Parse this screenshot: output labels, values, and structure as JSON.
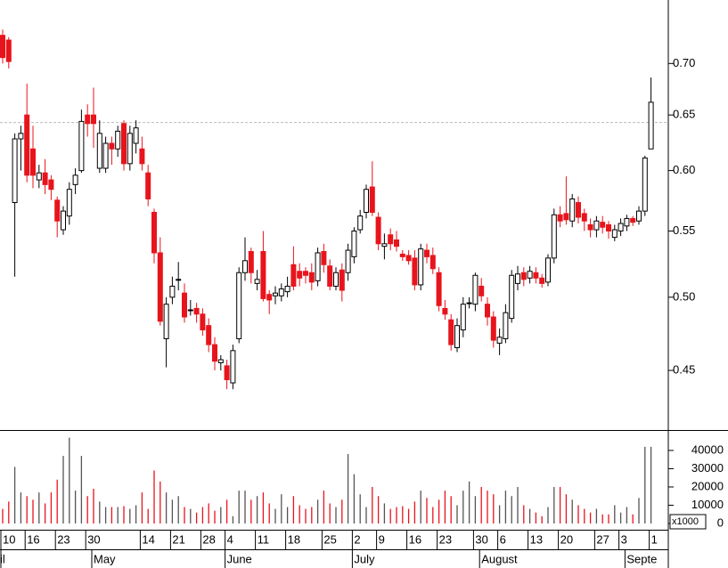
{
  "chart_data": {
    "type": "candlestick",
    "categories": [
      "10",
      null,
      null,
      null,
      "16",
      null,
      null,
      null,
      null,
      "23",
      null,
      null,
      null,
      null,
      "30",
      null,
      null,
      null,
      null,
      null,
      null,
      null,
      null,
      "14",
      null,
      null,
      null,
      null,
      "21",
      null,
      null,
      null,
      null,
      "28",
      null,
      null,
      null,
      "4",
      null,
      null,
      null,
      null,
      "11",
      null,
      null,
      null,
      null,
      "18",
      null,
      null,
      null,
      null,
      null,
      "25",
      null,
      null,
      null,
      null,
      "2",
      null,
      null,
      null,
      "9",
      null,
      null,
      null,
      null,
      "16",
      null,
      null,
      null,
      null,
      "23",
      null,
      null,
      null,
      null,
      null,
      "30",
      null,
      null,
      null,
      "6",
      null,
      null,
      null,
      null,
      "13",
      null,
      null,
      null,
      null,
      "20",
      null,
      null,
      null,
      null,
      null,
      "27",
      null,
      null,
      null,
      "3",
      null,
      null,
      null,
      null,
      "1"
    ],
    "months": [
      "il",
      null,
      null,
      null,
      null,
      null,
      null,
      null,
      null,
      null,
      null,
      null,
      null,
      null,
      null,
      "May",
      null,
      null,
      null,
      null,
      null,
      null,
      null,
      null,
      null,
      null,
      null,
      null,
      null,
      null,
      null,
      null,
      null,
      null,
      null,
      null,
      null,
      "June",
      null,
      null,
      null,
      null,
      null,
      null,
      null,
      null,
      null,
      null,
      null,
      null,
      null,
      null,
      null,
      null,
      null,
      null,
      null,
      null,
      "July",
      null,
      null,
      null,
      null,
      null,
      null,
      null,
      null,
      null,
      null,
      null,
      null,
      null,
      null,
      null,
      null,
      null,
      null,
      null,
      null,
      "August",
      null,
      null,
      null,
      null,
      null,
      null,
      null,
      null,
      null,
      null,
      null,
      null,
      null,
      null,
      null,
      null,
      null,
      null,
      null,
      null,
      null,
      null,
      null,
      "Septe",
      null,
      null,
      null,
      null
    ],
    "open": [
      0.729,
      0.724,
      0.573,
      0.628,
      0.65,
      0.619,
      0.592,
      0.598,
      0.592,
      0.575,
      0.551,
      0.562,
      0.588,
      0.6,
      0.65,
      0.65,
      0.602,
      0.602,
      0.624,
      0.619,
      0.642,
      0.606,
      0.624,
      0.619,
      0.598,
      0.565,
      0.533,
      0.471,
      0.5,
      0.513,
      0.503,
      0.491,
      0.492,
      0.488,
      0.48,
      0.467,
      0.455,
      0.453,
      0.442,
      0.471,
      0.518,
      0.534,
      0.51,
      0.534,
      0.502,
      0.501,
      0.501,
      0.504,
      0.524,
      0.519,
      0.519,
      0.518,
      0.512,
      0.534,
      0.523,
      0.508,
      0.52,
      0.518,
      0.53,
      0.551,
      0.565,
      0.586,
      0.561,
      0.538,
      0.547,
      0.543,
      0.532,
      0.531,
      0.529,
      0.509,
      0.535,
      0.531,
      0.518,
      0.492,
      0.484,
      0.465,
      0.477,
      0.496,
      0.495,
      0.508,
      0.495,
      0.486,
      0.468,
      0.471,
      0.485,
      0.51,
      0.518,
      0.514,
      0.518,
      0.514,
      0.511,
      0.529,
      0.563,
      0.564,
      0.558,
      0.573,
      0.564,
      0.555,
      0.551,
      0.557,
      0.555,
      0.545,
      0.55,
      0.554,
      0.56,
      0.558,
      0.566,
      0.619
    ],
    "high": [
      0.735,
      0.727,
      0.633,
      0.64,
      0.68,
      0.64,
      0.605,
      0.61,
      0.596,
      0.578,
      0.57,
      0.59,
      0.602,
      0.655,
      0.66,
      0.676,
      0.645,
      0.63,
      0.63,
      0.64,
      0.645,
      0.64,
      0.645,
      0.63,
      0.605,
      0.568,
      0.545,
      0.5,
      0.515,
      0.526,
      0.51,
      0.498,
      0.496,
      0.492,
      0.485,
      0.472,
      0.46,
      0.457,
      0.467,
      0.522,
      0.545,
      0.537,
      0.52,
      0.55,
      0.505,
      0.508,
      0.51,
      0.515,
      0.538,
      0.525,
      0.522,
      0.525,
      0.537,
      0.54,
      0.528,
      0.522,
      0.525,
      0.54,
      0.553,
      0.567,
      0.588,
      0.608,
      0.565,
      0.548,
      0.552,
      0.55,
      0.535,
      0.535,
      0.535,
      0.54,
      0.54,
      0.537,
      0.522,
      0.498,
      0.488,
      0.485,
      0.5,
      0.5,
      0.518,
      0.514,
      0.5,
      0.49,
      0.478,
      0.495,
      0.52,
      0.523,
      0.522,
      0.523,
      0.522,
      0.517,
      0.532,
      0.568,
      0.57,
      0.595,
      0.58,
      0.578,
      0.568,
      0.56,
      0.562,
      0.562,
      0.558,
      0.555,
      0.56,
      0.563,
      0.562,
      0.57,
      0.613,
      0.686
    ],
    "low": [
      0.7,
      0.695,
      0.515,
      0.6,
      0.59,
      0.585,
      0.585,
      0.58,
      0.575,
      0.545,
      0.547,
      0.555,
      0.58,
      0.598,
      0.63,
      0.62,
      0.598,
      0.598,
      0.605,
      0.612,
      0.6,
      0.6,
      0.615,
      0.6,
      0.57,
      0.525,
      0.48,
      0.452,
      0.495,
      0.505,
      0.482,
      0.487,
      0.482,
      0.473,
      0.462,
      0.45,
      0.45,
      0.438,
      0.438,
      0.468,
      0.512,
      0.51,
      0.505,
      0.497,
      0.488,
      0.495,
      0.497,
      0.5,
      0.505,
      0.508,
      0.51,
      0.505,
      0.508,
      0.518,
      0.505,
      0.505,
      0.497,
      0.512,
      0.525,
      0.548,
      0.56,
      0.562,
      0.535,
      0.528,
      0.535,
      0.534,
      0.527,
      0.524,
      0.505,
      0.505,
      0.525,
      0.517,
      0.49,
      0.484,
      0.463,
      0.462,
      0.472,
      0.492,
      0.49,
      0.497,
      0.48,
      0.465,
      0.46,
      0.468,
      0.482,
      0.505,
      0.508,
      0.51,
      0.51,
      0.507,
      0.508,
      0.525,
      0.553,
      0.555,
      0.553,
      0.556,
      0.55,
      0.545,
      0.545,
      0.548,
      0.544,
      0.542,
      0.546,
      0.55,
      0.554,
      0.555,
      0.562,
      0.619
    ],
    "close": [
      0.706,
      0.702,
      0.628,
      0.633,
      0.596,
      0.596,
      0.598,
      0.588,
      0.584,
      0.558,
      0.566,
      0.584,
      0.596,
      0.644,
      0.642,
      0.642,
      0.633,
      0.624,
      0.619,
      0.635,
      0.606,
      0.633,
      0.638,
      0.606,
      0.576,
      0.533,
      0.483,
      0.495,
      0.508,
      0.513,
      0.486,
      0.491,
      0.488,
      0.477,
      0.467,
      0.456,
      0.457,
      0.444,
      0.463,
      0.518,
      0.527,
      0.518,
      0.513,
      0.499,
      0.498,
      0.503,
      0.506,
      0.508,
      0.508,
      0.514,
      0.516,
      0.511,
      0.533,
      0.524,
      0.508,
      0.518,
      0.505,
      0.535,
      0.55,
      0.562,
      0.584,
      0.565,
      0.54,
      0.54,
      0.54,
      0.538,
      0.53,
      0.527,
      0.509,
      0.536,
      0.53,
      0.521,
      0.494,
      0.488,
      0.467,
      0.48,
      0.495,
      0.496,
      0.516,
      0.501,
      0.486,
      0.47,
      0.472,
      0.489,
      0.516,
      0.517,
      0.513,
      0.519,
      0.514,
      0.51,
      0.529,
      0.563,
      0.558,
      0.559,
      0.576,
      0.561,
      0.558,
      0.551,
      0.558,
      0.553,
      0.55,
      0.551,
      0.556,
      0.56,
      0.557,
      0.566,
      0.611,
      0.662
    ],
    "up_color": "#ffffff",
    "down_color": "#e8141c",
    "ylim": [
      0.413,
      0.767
    ],
    "yticks": [
      0.45,
      {
        "value": 0.5,
        "label": "0.50"
      },
      0.55,
      {
        "value": 0.6,
        "label": "0.60"
      },
      0.65,
      {
        "value": 0.7,
        "label": "0.70"
      }
    ],
    "log_scale": true,
    "reference_line": 0.643,
    "volume": {
      "values": [
        8000,
        12000,
        31000,
        17000,
        15000,
        13000,
        17000,
        11000,
        17000,
        24000,
        37000,
        47000,
        18000,
        37000,
        15000,
        19000,
        12000,
        9000,
        9000,
        9000,
        9500,
        8000,
        10000,
        17000,
        8000,
        29000,
        23000,
        17000,
        13000,
        15000,
        9000,
        8000,
        6000,
        9000,
        11000,
        7000,
        9000,
        13000,
        4000,
        18000,
        18000,
        13000,
        15000,
        17000,
        11000,
        8000,
        16000,
        9000,
        15000,
        10000,
        8000,
        9000,
        13000,
        18000,
        11000,
        9000,
        13000,
        38000,
        27000,
        16000,
        9000,
        20000,
        15000,
        11000,
        8000,
        9000,
        9500,
        8000,
        12000,
        18000,
        14000,
        9000,
        13000,
        18000,
        15000,
        10000,
        18000,
        23000,
        15000,
        20000,
        18000,
        16000,
        10000,
        18000,
        15000,
        20000,
        10000,
        8000,
        6000,
        4000,
        9000,
        20000,
        20000,
        16000,
        13000,
        10000,
        8000,
        6000,
        8000,
        5000,
        5000,
        10000,
        6000,
        9000,
        5000,
        14000,
        42000,
        42000
      ],
      "ylim": [
        0,
        50700
      ],
      "yticks": [
        0,
        10000,
        20000,
        30000,
        40000
      ],
      "unit_label": "x1000"
    }
  }
}
